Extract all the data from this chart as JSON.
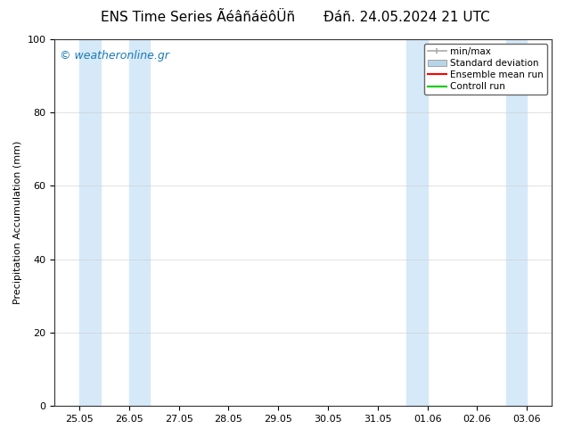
{
  "title_left": "ENS Time Series ÃéâñáëôÜñ",
  "title_right": "Đáñ. 24.05.2024 21 UTC",
  "ylabel": "Precipitation Accumulation (mm)",
  "watermark": "© weatheronline.gr",
  "ylim": [
    0,
    100
  ],
  "yticks": [
    0,
    20,
    40,
    60,
    80,
    100
  ],
  "xtick_labels": [
    "25.05",
    "26.05",
    "27.05",
    "28.05",
    "29.05",
    "30.05",
    "31.05",
    "01.06",
    "02.06",
    "03.06"
  ],
  "xmin": 0,
  "xmax": 9,
  "shaded_bands": [
    [
      0.0,
      0.42
    ],
    [
      1.0,
      1.42
    ],
    [
      6.58,
      7.0
    ],
    [
      8.58,
      9.0
    ]
  ],
  "shaded_color": "#d6e9f8",
  "legend_labels": [
    "min/max",
    "Standard deviation",
    "Ensemble mean run",
    "Controll run"
  ],
  "legend_colors_line": [
    "#aaaaaa",
    "#b8d4e8",
    "#ff0000",
    "#00aa00"
  ],
  "bg_color": "#ffffff",
  "plot_bg_color": "#ffffff",
  "border_color": "#333333",
  "watermark_color": "#1a7ab5",
  "font_size_title": 11,
  "font_size_axis": 8,
  "font_size_ticks": 8,
  "font_size_watermark": 9,
  "font_size_legend": 7.5
}
